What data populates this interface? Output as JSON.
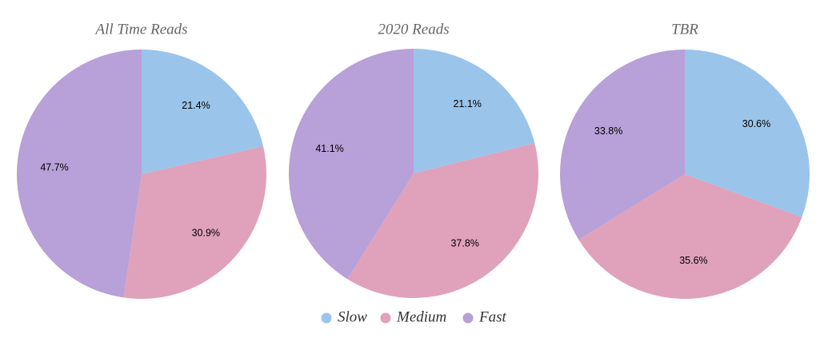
{
  "chart_data": [
    {
      "type": "pie",
      "title": "All Time Reads",
      "values": [
        21.4,
        30.9,
        47.7
      ],
      "value_labels": [
        "21.4%",
        "30.9%",
        "47.7%"
      ]
    },
    {
      "type": "pie",
      "title": "2020 Reads",
      "values": [
        21.1,
        37.8,
        41.1
      ],
      "value_labels": [
        "21.1%",
        "37.8%",
        "41.1%"
      ]
    },
    {
      "type": "pie",
      "title": "TBR",
      "values": [
        30.6,
        35.6,
        33.8
      ],
      "value_labels": [
        "30.6%",
        "35.6%",
        "33.8%"
      ]
    }
  ],
  "legend": {
    "labels": [
      "Slow",
      "Medium",
      "Fast"
    ],
    "colors": [
      "#9ac4ea",
      "#e0a1bb",
      "#b8a0d8"
    ]
  }
}
